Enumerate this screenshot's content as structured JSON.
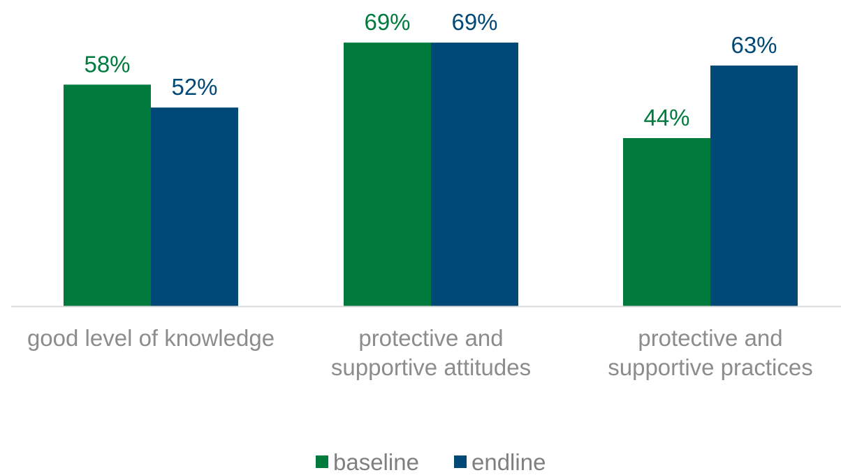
{
  "chart_data": {
    "type": "bar",
    "title": "",
    "xlabel": "",
    "ylabel": "",
    "ylim": [
      0,
      72
    ],
    "grid": false,
    "legend_position": "bottom-center",
    "categories": [
      [
        "good level of knowledge"
      ],
      [
        "protective and",
        "supportive attitudes"
      ],
      [
        "protective and",
        "supportive practices"
      ]
    ],
    "series": [
      {
        "name": "baseline",
        "color": "#007a3d",
        "values": [
          58,
          69,
          44
        ],
        "labels": [
          "58%",
          "69%",
          "44%"
        ]
      },
      {
        "name": "endline",
        "color": "#004876",
        "values": [
          52,
          69,
          63
        ],
        "labels": [
          "52%",
          "69%",
          "63%"
        ]
      }
    ],
    "axis_color": "#d9d9d9"
  }
}
